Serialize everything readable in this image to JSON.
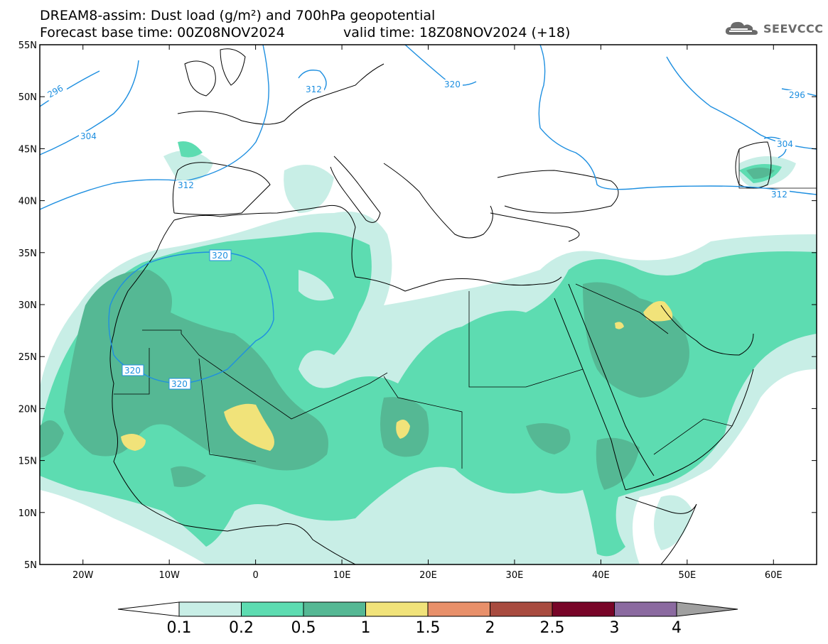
{
  "title_line1": "DREAM8-assim: Dust load (g/m²) and 700hPa geopotential",
  "title_line2": "Forecast base time: 00Z08NOV2024",
  "valid_time": "valid time: 18Z08NOV2024 (+18)",
  "logo": {
    "text": "SEEVCCC",
    "icon": "cloud-icon"
  },
  "axes": {
    "lon_range": [
      -25,
      65
    ],
    "lat_range": [
      5,
      55
    ],
    "x_ticks": [
      {
        "value": -20,
        "label": "20W"
      },
      {
        "value": -10,
        "label": "10W"
      },
      {
        "value": 0,
        "label": "0"
      },
      {
        "value": 10,
        "label": "10E"
      },
      {
        "value": 20,
        "label": "20E"
      },
      {
        "value": 30,
        "label": "30E"
      },
      {
        "value": 40,
        "label": "40E"
      },
      {
        "value": 50,
        "label": "50E"
      },
      {
        "value": 60,
        "label": "60E"
      }
    ],
    "y_ticks": [
      {
        "value": 55,
        "label": "55N"
      },
      {
        "value": 50,
        "label": "50N"
      },
      {
        "value": 45,
        "label": "45N"
      },
      {
        "value": 40,
        "label": "40N"
      },
      {
        "value": 35,
        "label": "35N"
      },
      {
        "value": 30,
        "label": "30N"
      },
      {
        "value": 25,
        "label": "25N"
      },
      {
        "value": 20,
        "label": "20N"
      },
      {
        "value": 15,
        "label": "15N"
      },
      {
        "value": 10,
        "label": "10N"
      },
      {
        "value": 5,
        "label": "5N"
      }
    ]
  },
  "dust_levels": [
    {
      "min": 0.1,
      "max": 0.2,
      "color": "#c8eee6"
    },
    {
      "min": 0.2,
      "max": 0.5,
      "color": "#5ddcb1"
    },
    {
      "min": 0.5,
      "max": 1,
      "color": "#55b894"
    },
    {
      "min": 1,
      "max": 1.5,
      "color": "#f1e37a"
    },
    {
      "min": 1.5,
      "max": 2,
      "color": "#e8906a"
    },
    {
      "min": 2,
      "max": 2.5,
      "color": "#a84b3f"
    },
    {
      "min": 2.5,
      "max": 3,
      "color": "#780528"
    },
    {
      "min": 3,
      "max": 4,
      "color": "#8b6aa0"
    }
  ],
  "colorbar": {
    "labels": [
      "0.1",
      "0.2",
      "0.5",
      "1",
      "1.5",
      "2",
      "2.5",
      "3",
      "4"
    ],
    "low_end_color": "#ffffff",
    "high_end_color": "#a0a0a0"
  },
  "geopotential_contours": [
    {
      "label": "296"
    },
    {
      "label": "304"
    },
    {
      "label": "312"
    },
    {
      "label": "320"
    }
  ],
  "contour_color": "#1e8fe0"
}
